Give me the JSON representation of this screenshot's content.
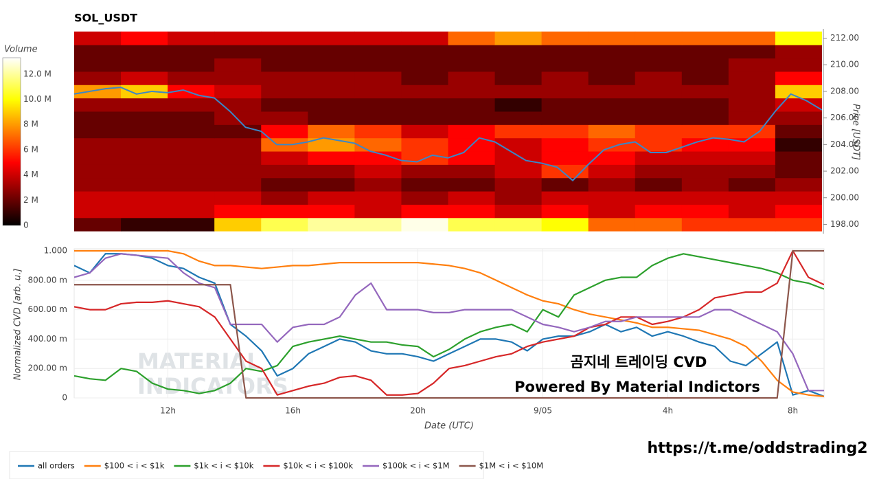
{
  "chart_data": [
    {
      "type": "heatmap",
      "title": "SOL_USDT",
      "colorbar_title": "Volume",
      "ylabel": "Price [USDT]",
      "xlim": [
        9,
        33
      ],
      "ylim": [
        197.3,
        212.7
      ],
      "yticks": [
        {
          "value": 198,
          "label": "198.00"
        },
        {
          "value": 200,
          "label": "200.00"
        },
        {
          "value": 202,
          "label": "202.00"
        },
        {
          "value": 204,
          "label": "204.00"
        },
        {
          "value": 206,
          "label": "206.00"
        },
        {
          "value": 208,
          "label": "208.00"
        },
        {
          "value": 210,
          "label": "210.00"
        },
        {
          "value": 212,
          "label": "212.00"
        }
      ],
      "zlim": [
        0,
        13.3
      ],
      "zticks": [
        0,
        {
          "value": 2,
          "label": "2 M"
        },
        {
          "value": 4,
          "label": "4 M"
        },
        {
          "value": 6,
          "label": "6 M"
        },
        {
          "value": 8,
          "label": "8 M"
        },
        {
          "value": 10,
          "label": "10.0 M"
        },
        {
          "value": 12,
          "label": "12.0 M"
        }
      ],
      "xbins": [
        9,
        10.5,
        12,
        13.5,
        15,
        16.5,
        18,
        19.5,
        21,
        22.5,
        24,
        25.5,
        27,
        28.5,
        30,
        31.5,
        33
      ],
      "y": [
        198,
        199,
        200,
        201,
        202,
        203,
        204,
        205,
        206,
        207,
        208,
        209,
        210,
        211,
        212
      ],
      "z": [
        [
          2,
          1,
          1,
          9,
          11,
          12,
          12,
          13,
          11,
          11,
          10,
          7,
          7,
          6,
          6,
          6
        ],
        [
          4,
          4,
          4,
          5,
          5,
          5,
          4,
          5,
          5,
          4,
          5,
          4,
          5,
          5,
          4,
          5
        ],
        [
          4,
          4,
          4,
          4,
          3,
          4,
          4,
          3,
          4,
          3,
          4,
          4,
          4,
          4,
          4,
          4
        ],
        [
          3,
          3,
          3,
          3,
          2,
          2,
          3,
          2,
          2,
          3,
          2,
          3,
          2,
          3,
          2,
          3
        ],
        [
          3,
          3,
          3,
          3,
          3,
          3,
          4,
          3,
          3,
          4,
          6,
          4,
          3,
          3,
          3,
          2
        ],
        [
          3,
          3,
          3,
          3,
          4,
          5,
          5,
          6,
          5,
          4,
          5,
          5,
          4,
          4,
          4,
          2
        ],
        [
          3,
          3,
          3,
          3,
          7,
          8,
          7,
          6,
          5,
          4,
          5,
          6,
          6,
          5,
          5,
          1
        ],
        [
          2,
          2,
          2,
          2,
          5,
          7,
          6,
          4,
          5,
          6,
          6,
          7,
          6,
          6,
          6,
          2
        ],
        [
          2,
          2,
          2,
          3,
          3,
          2,
          2,
          2,
          2,
          2,
          2,
          2,
          2,
          2,
          3,
          3
        ],
        [
          3,
          3,
          3,
          3,
          2,
          2,
          2,
          2,
          2,
          1,
          2,
          2,
          2,
          2,
          3,
          4
        ],
        [
          8,
          9,
          5,
          4,
          3,
          3,
          3,
          3,
          3,
          3,
          3,
          3,
          3,
          3,
          3,
          9
        ],
        [
          3,
          4,
          3,
          3,
          3,
          3,
          3,
          2,
          3,
          2,
          3,
          2,
          3,
          2,
          3,
          5
        ],
        [
          2,
          2,
          2,
          3,
          2,
          2,
          2,
          2,
          2,
          2,
          2,
          2,
          2,
          2,
          3,
          3
        ],
        [
          2,
          2,
          2,
          2,
          2,
          2,
          2,
          2,
          2,
          2,
          2,
          2,
          2,
          2,
          2,
          3
        ],
        [
          4,
          5,
          4,
          4,
          4,
          4,
          4,
          4,
          7,
          8,
          7,
          7,
          7,
          7,
          7,
          10
        ]
      ],
      "line": {
        "color": "#3a87c8",
        "x": [
          9,
          9.5,
          10,
          10.5,
          11,
          11.5,
          12,
          12.5,
          13,
          13.5,
          14,
          14.5,
          15,
          15.5,
          16,
          16.5,
          17,
          17.5,
          18,
          18.5,
          19,
          19.5,
          20,
          20.5,
          21,
          21.5,
          22,
          22.5,
          23,
          23.5,
          24,
          24.5,
          25,
          25.5,
          26,
          26.5,
          27,
          27.5,
          28,
          28.5,
          29,
          29.5,
          30,
          30.5,
          31,
          31.5,
          32,
          32.5,
          33
        ],
        "values": [
          207.8,
          208,
          208.2,
          208.3,
          207.8,
          208,
          207.9,
          208.1,
          207.7,
          207.5,
          206.5,
          205.3,
          205,
          204,
          204,
          204.2,
          204.5,
          204.3,
          204.1,
          203.5,
          203.2,
          202.8,
          202.7,
          203.2,
          203,
          203.4,
          204.5,
          204.2,
          203.5,
          202.8,
          202.6,
          202.3,
          201.3,
          202.5,
          203.6,
          204,
          204.2,
          203.4,
          203.4,
          203.8,
          204.2,
          204.5,
          204.4,
          204.2,
          205,
          206.5,
          207.8,
          207.3,
          206.6
        ]
      }
    },
    {
      "type": "line",
      "xlabel": "Date (UTC)",
      "ylabel": "Normalized CVD [arb. u.]",
      "grid": true,
      "legend": "bottom-left",
      "xlim": [
        9,
        33
      ],
      "xticks": [
        {
          "value": 12,
          "label": "12h"
        },
        {
          "value": 16,
          "label": "16h"
        },
        {
          "value": 20,
          "label": "20h"
        },
        {
          "value": 24,
          "label": "9/05"
        },
        {
          "value": 28,
          "label": "4h"
        },
        {
          "value": 32,
          "label": "8h"
        }
      ],
      "ylim": [
        0,
        1
      ],
      "yticks": [
        0,
        {
          "value": 0.2,
          "label": "200.00 m"
        },
        {
          "value": 0.4,
          "label": "400.00 m"
        },
        {
          "value": 0.6,
          "label": "600.00 m"
        },
        {
          "value": 0.8,
          "label": "800.00 m"
        },
        {
          "value": 1,
          "label": "1.000"
        }
      ],
      "annotations": [
        "곰지네 트레이딩 CVD",
        "Powered By Material Indictors"
      ],
      "watermark": [
        "MATERIAL",
        "INDICATORS"
      ],
      "x": [
        9,
        9.5,
        10,
        10.5,
        11,
        11.5,
        12,
        12.5,
        13,
        13.5,
        14,
        14.5,
        15,
        15.5,
        16,
        16.5,
        17,
        17.5,
        18,
        18.5,
        19,
        19.5,
        20,
        20.5,
        21,
        21.5,
        22,
        22.5,
        23,
        23.5,
        24,
        24.5,
        25,
        25.5,
        26,
        26.5,
        27,
        27.5,
        28,
        28.5,
        29,
        29.5,
        30,
        30.5,
        31,
        31.5,
        32,
        32.5,
        33
      ],
      "series": [
        {
          "name": "all orders",
          "color": "#1f77b4",
          "values": [
            0.9,
            0.85,
            0.98,
            0.98,
            0.97,
            0.95,
            0.9,
            0.88,
            0.82,
            0.78,
            0.5,
            0.42,
            0.32,
            0.15,
            0.2,
            0.3,
            0.35,
            0.4,
            0.38,
            0.32,
            0.3,
            0.3,
            0.28,
            0.25,
            0.3,
            0.35,
            0.4,
            0.4,
            0.38,
            0.32,
            0.4,
            0.42,
            0.42,
            0.45,
            0.5,
            0.45,
            0.48,
            0.42,
            0.45,
            0.42,
            0.38,
            0.35,
            0.25,
            0.22,
            0.3,
            0.38,
            0.02,
            0.05,
            0.01
          ]
        },
        {
          "name": "$100 < i < $1k",
          "color": "#ff7f0e",
          "values": [
            1,
            1,
            1,
            1,
            1,
            1,
            1,
            0.98,
            0.93,
            0.9,
            0.9,
            0.89,
            0.88,
            0.89,
            0.9,
            0.9,
            0.91,
            0.92,
            0.92,
            0.92,
            0.92,
            0.92,
            0.92,
            0.91,
            0.9,
            0.88,
            0.85,
            0.8,
            0.75,
            0.7,
            0.66,
            0.64,
            0.6,
            0.57,
            0.55,
            0.53,
            0.51,
            0.48,
            0.48,
            0.47,
            0.46,
            0.43,
            0.4,
            0.35,
            0.25,
            0.12,
            0.04,
            0.02,
            0.01
          ]
        },
        {
          "name": "$1k < i < $10k",
          "color": "#2ca02c",
          "values": [
            0.15,
            0.13,
            0.12,
            0.2,
            0.18,
            0.1,
            0.06,
            0.05,
            0.03,
            0.05,
            0.1,
            0.2,
            0.18,
            0.22,
            0.35,
            0.38,
            0.4,
            0.42,
            0.4,
            0.38,
            0.38,
            0.36,
            0.35,
            0.28,
            0.33,
            0.4,
            0.45,
            0.48,
            0.5,
            0.45,
            0.6,
            0.55,
            0.7,
            0.75,
            0.8,
            0.82,
            0.82,
            0.9,
            0.95,
            0.98,
            0.96,
            0.94,
            0.92,
            0.9,
            0.88,
            0.85,
            0.8,
            0.78,
            0.74
          ]
        },
        {
          "name": "$10k < i < $100k",
          "color": "#d62728",
          "values": [
            0.62,
            0.6,
            0.6,
            0.64,
            0.65,
            0.65,
            0.66,
            0.64,
            0.62,
            0.55,
            0.4,
            0.25,
            0.2,
            0.02,
            0.05,
            0.08,
            0.1,
            0.14,
            0.15,
            0.12,
            0.02,
            0.02,
            0.03,
            0.1,
            0.2,
            0.22,
            0.25,
            0.28,
            0.3,
            0.35,
            0.38,
            0.4,
            0.42,
            0.48,
            0.5,
            0.55,
            0.55,
            0.5,
            0.52,
            0.55,
            0.6,
            0.68,
            0.7,
            0.72,
            0.72,
            0.78,
            1,
            0.82,
            0.77
          ]
        },
        {
          "name": "$100k < i < $1M",
          "color": "#9467bd",
          "values": [
            0.82,
            0.85,
            0.95,
            0.98,
            0.97,
            0.96,
            0.95,
            0.85,
            0.78,
            0.75,
            0.5,
            0.5,
            0.5,
            0.38,
            0.48,
            0.5,
            0.5,
            0.55,
            0.7,
            0.78,
            0.6,
            0.6,
            0.6,
            0.58,
            0.58,
            0.6,
            0.6,
            0.6,
            0.6,
            0.55,
            0.5,
            0.48,
            0.45,
            0.48,
            0.52,
            0.52,
            0.55,
            0.55,
            0.55,
            0.55,
            0.55,
            0.6,
            0.6,
            0.55,
            0.5,
            0.45,
            0.3,
            0.05,
            0.05
          ]
        },
        {
          "name": "$1M < i < $10M",
          "color": "#8c564b",
          "values": [
            0.77,
            0.77,
            0.77,
            0.77,
            0.77,
            0.77,
            0.77,
            0.77,
            0.77,
            0.77,
            0.77,
            0,
            0,
            0,
            0,
            0,
            0,
            0,
            0,
            0,
            0,
            0,
            0,
            0,
            0,
            0,
            0,
            0,
            0,
            0,
            0,
            0,
            0,
            0,
            0,
            0,
            0,
            0,
            0,
            0,
            0,
            0,
            0,
            0,
            0,
            0,
            1,
            1,
            1
          ]
        }
      ]
    }
  ],
  "footer_link": "https://t.me/oddstrading2"
}
